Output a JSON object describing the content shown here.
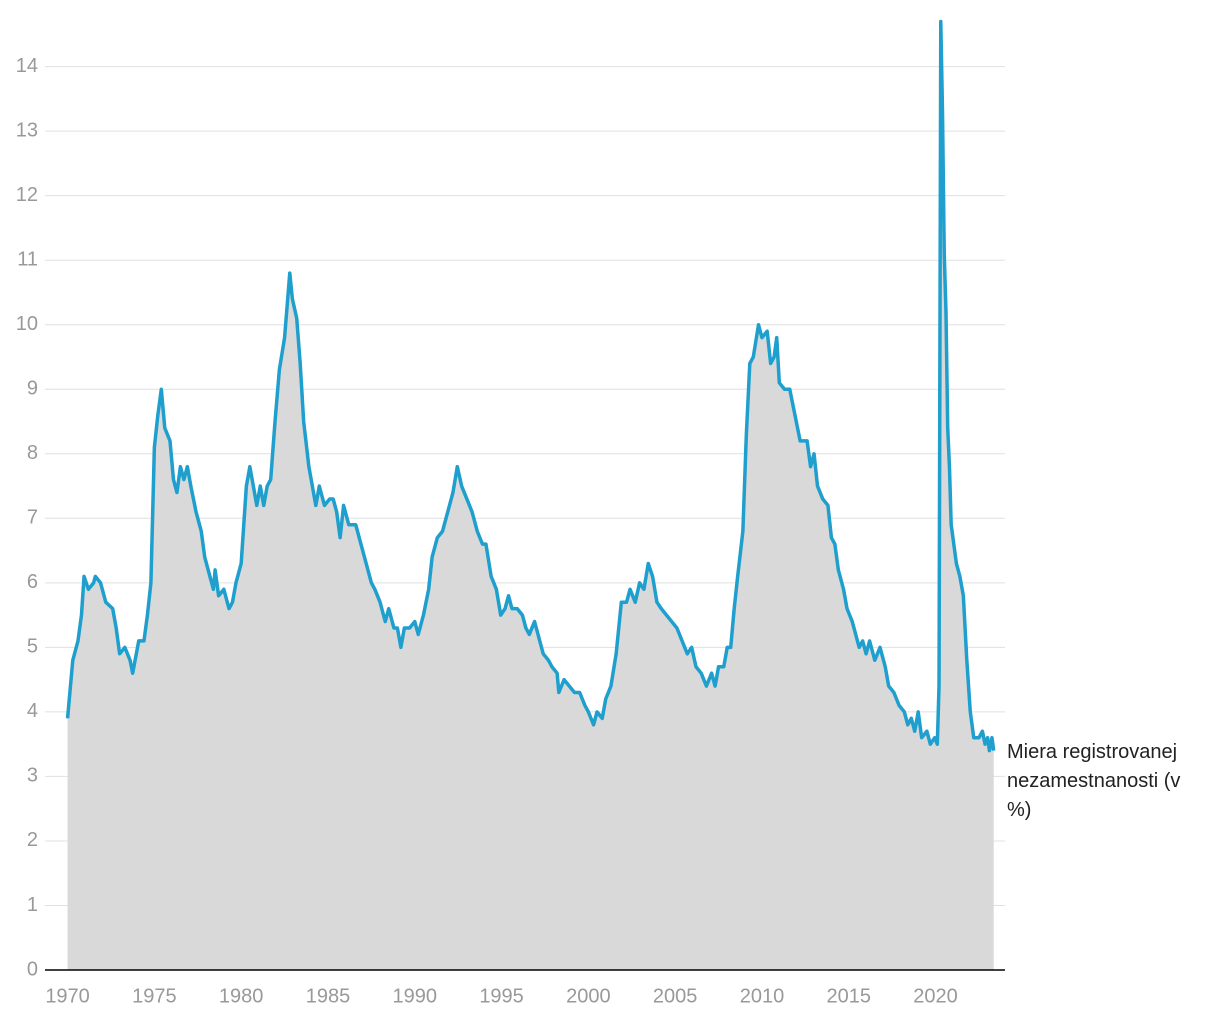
{
  "chart_data": {
    "type": "area",
    "x": [
      1970.0,
      1970.3,
      1970.6,
      1970.8,
      1970.95,
      1971.2,
      1971.5,
      1971.6,
      1971.9,
      1972.2,
      1972.6,
      1972.8,
      1973.0,
      1973.3,
      1973.6,
      1973.75,
      1974.1,
      1974.4,
      1974.6,
      1974.8,
      1975.0,
      1975.2,
      1975.4,
      1975.6,
      1975.9,
      1976.1,
      1976.3,
      1976.5,
      1976.7,
      1976.9,
      1977.1,
      1977.4,
      1977.7,
      1977.9,
      1978.2,
      1978.4,
      1978.5,
      1978.7,
      1979.0,
      1979.3,
      1979.5,
      1979.7,
      1980.0,
      1980.3,
      1980.5,
      1980.7,
      1980.9,
      1981.1,
      1981.3,
      1981.5,
      1981.7,
      1981.95,
      1982.2,
      1982.5,
      1982.8,
      1982.95,
      1983.2,
      1983.4,
      1983.6,
      1983.9,
      1984.1,
      1984.3,
      1984.5,
      1984.8,
      1985.1,
      1985.3,
      1985.5,
      1985.7,
      1985.9,
      1986.2,
      1986.6,
      1986.9,
      1987.2,
      1987.5,
      1987.7,
      1988.0,
      1988.3,
      1988.5,
      1988.8,
      1989.0,
      1989.2,
      1989.4,
      1989.7,
      1990.0,
      1990.2,
      1990.5,
      1990.8,
      1991.0,
      1991.3,
      1991.6,
      1991.9,
      1992.2,
      1992.45,
      1992.7,
      1993.0,
      1993.3,
      1993.6,
      1993.9,
      1994.1,
      1994.4,
      1994.7,
      1994.95,
      1995.2,
      1995.4,
      1995.6,
      1995.9,
      1996.2,
      1996.4,
      1996.6,
      1996.9,
      1997.2,
      1997.4,
      1997.7,
      1997.9,
      1998.2,
      1998.3,
      1998.6,
      1998.9,
      1999.2,
      1999.5,
      1999.8,
      2000.0,
      2000.3,
      2000.5,
      2000.8,
      2001.0,
      2001.3,
      2001.6,
      2001.9,
      2002.2,
      2002.4,
      2002.7,
      2002.95,
      2003.2,
      2003.45,
      2003.7,
      2003.95,
      2004.2,
      2004.5,
      2004.8,
      2005.1,
      2005.4,
      2005.7,
      2005.95,
      2006.2,
      2006.5,
      2006.8,
      2007.1,
      2007.3,
      2007.5,
      2007.8,
      2008.0,
      2008.2,
      2008.4,
      2008.6,
      2008.9,
      2009.1,
      2009.3,
      2009.5,
      2009.8,
      2010.0,
      2010.3,
      2010.5,
      2010.7,
      2010.85,
      2011.0,
      2011.3,
      2011.6,
      2011.9,
      2012.2,
      2012.6,
      2012.8,
      2013.0,
      2013.2,
      2013.5,
      2013.8,
      2014.0,
      2014.2,
      2014.4,
      2014.7,
      2014.9,
      2015.2,
      2015.4,
      2015.6,
      2015.8,
      2016.0,
      2016.2,
      2016.5,
      2016.8,
      2017.1,
      2017.3,
      2017.6,
      2017.9,
      2018.2,
      2018.4,
      2018.6,
      2018.8,
      2019.0,
      2019.2,
      2019.5,
      2019.7,
      2019.95,
      2020.1,
      2020.2,
      2020.3,
      2020.4,
      2020.5,
      2020.6,
      2020.7,
      2020.8,
      2020.9,
      2021.0,
      2021.2,
      2021.4,
      2021.6,
      2021.8,
      2022.0,
      2022.2,
      2022.5,
      2022.7,
      2022.85,
      2023.0,
      2023.1,
      2023.25,
      2023.35
    ],
    "series": [
      {
        "name": "Miera registrovanej nezamestnanosti (v %)",
        "color": "#1e9fcd",
        "fill": "#d9d9d9",
        "values": [
          3.9,
          4.8,
          5.1,
          5.5,
          6.1,
          5.9,
          6.0,
          6.1,
          6.0,
          5.7,
          5.6,
          5.3,
          4.9,
          5.0,
          4.8,
          4.6,
          5.1,
          5.1,
          5.5,
          6.0,
          8.1,
          8.6,
          9.0,
          8.4,
          8.2,
          7.6,
          7.4,
          7.8,
          7.6,
          7.8,
          7.5,
          7.1,
          6.8,
          6.4,
          6.1,
          5.9,
          6.2,
          5.8,
          5.9,
          5.6,
          5.7,
          6.0,
          6.3,
          7.5,
          7.8,
          7.5,
          7.2,
          7.5,
          7.2,
          7.5,
          7.6,
          8.5,
          9.3,
          9.8,
          10.8,
          10.4,
          10.1,
          9.4,
          8.5,
          7.8,
          7.5,
          7.2,
          7.5,
          7.2,
          7.3,
          7.3,
          7.1,
          6.7,
          7.2,
          6.9,
          6.9,
          6.6,
          6.3,
          6.0,
          5.9,
          5.7,
          5.4,
          5.6,
          5.3,
          5.3,
          5.0,
          5.3,
          5.3,
          5.4,
          5.2,
          5.5,
          5.9,
          6.4,
          6.7,
          6.8,
          7.1,
          7.4,
          7.8,
          7.5,
          7.3,
          7.1,
          6.8,
          6.6,
          6.6,
          6.1,
          5.9,
          5.5,
          5.6,
          5.8,
          5.6,
          5.6,
          5.5,
          5.3,
          5.2,
          5.4,
          5.1,
          4.9,
          4.8,
          4.7,
          4.6,
          4.3,
          4.5,
          4.4,
          4.3,
          4.3,
          4.1,
          4.0,
          3.8,
          4.0,
          3.9,
          4.2,
          4.4,
          4.9,
          5.7,
          5.7,
          5.9,
          5.7,
          6.0,
          5.9,
          6.3,
          6.1,
          5.7,
          5.6,
          5.5,
          5.4,
          5.3,
          5.1,
          4.9,
          5.0,
          4.7,
          4.6,
          4.4,
          4.6,
          4.4,
          4.7,
          4.7,
          5.0,
          5.0,
          5.6,
          6.1,
          6.8,
          8.3,
          9.4,
          9.5,
          10.0,
          9.8,
          9.9,
          9.4,
          9.5,
          9.8,
          9.1,
          9.0,
          9.0,
          8.6,
          8.2,
          8.2,
          7.8,
          8.0,
          7.5,
          7.3,
          7.2,
          6.7,
          6.6,
          6.2,
          5.9,
          5.6,
          5.4,
          5.2,
          5.0,
          5.1,
          4.9,
          5.1,
          4.8,
          5.0,
          4.7,
          4.4,
          4.3,
          4.1,
          4.0,
          3.8,
          3.9,
          3.7,
          4.0,
          3.6,
          3.7,
          3.5,
          3.6,
          3.5,
          4.4,
          14.7,
          13.3,
          11.1,
          10.2,
          8.4,
          7.8,
          6.9,
          6.7,
          6.3,
          6.1,
          5.8,
          4.8,
          4.0,
          3.6,
          3.6,
          3.7,
          3.5,
          3.6,
          3.4,
          3.6,
          3.4
        ]
      }
    ],
    "xlim": [
      1968.7,
      2024
    ],
    "ylim": [
      0,
      14.8
    ],
    "xticks": [
      1970,
      1975,
      1980,
      1985,
      1990,
      1995,
      2000,
      2005,
      2010,
      2015,
      2020
    ],
    "yticks": [
      0,
      1,
      2,
      3,
      4,
      5,
      6,
      7,
      8,
      9,
      10,
      11,
      12,
      13,
      14
    ],
    "grid": true
  }
}
